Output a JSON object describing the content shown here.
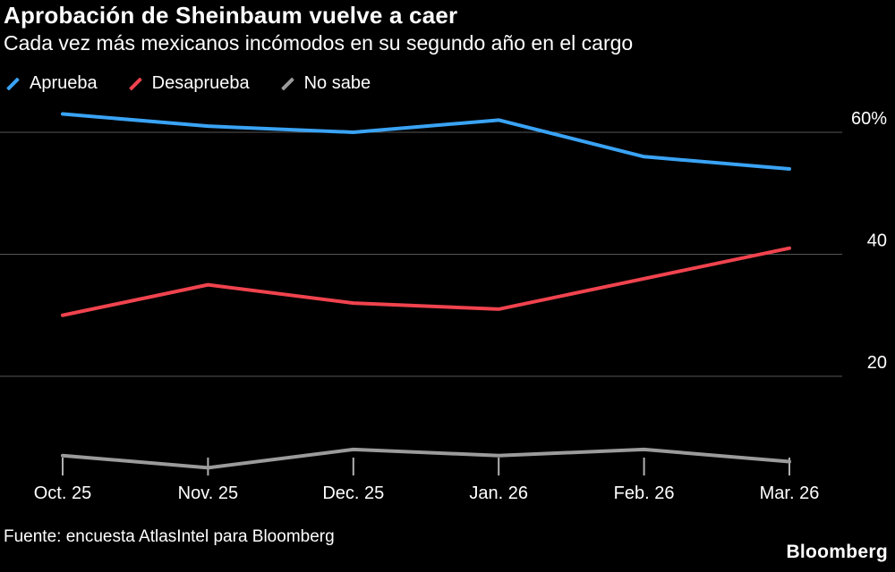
{
  "header": {
    "title": "Aprobación de Sheinbaum vuelve a caer",
    "subtitle": "Cada vez más mexicanos incómodos en su segundo año en el cargo"
  },
  "chart_data": {
    "type": "line",
    "title": "Aprobación de Sheinbaum vuelve a caer",
    "subtitle": "Cada vez más mexicanos incómodos en su segundo año en el cargo",
    "x": [
      "Oct. 25",
      "Nov. 25",
      "Dec. 25",
      "Jan. 26",
      "Feb. 26",
      "Mar. 26"
    ],
    "series": [
      {
        "name": "Aprueba",
        "color": "#3aa3f5",
        "values": [
          63,
          61,
          60,
          62,
          56,
          54
        ]
      },
      {
        "name": "Desaprueba",
        "color": "#f0434e",
        "values": [
          30,
          35,
          32,
          31,
          36,
          41
        ]
      },
      {
        "name": "No sabe",
        "color": "#9b9b9b",
        "values": [
          7,
          5,
          8,
          7,
          8,
          6
        ]
      }
    ],
    "yticks": [
      {
        "value": 60,
        "label": "60%"
      },
      {
        "value": 40,
        "label": "40"
      },
      {
        "value": 20,
        "label": "20"
      }
    ],
    "ylim": [
      0,
      68
    ],
    "grid": true,
    "legend_position": "top",
    "colors": {
      "background": "#000000",
      "gridline": "#565656",
      "tick": "#b0b0b0",
      "label": "#ffffff"
    }
  },
  "footer": {
    "source": "Fuente: encuesta AtlasIntel para Bloomberg",
    "brand": "Bloomberg"
  }
}
